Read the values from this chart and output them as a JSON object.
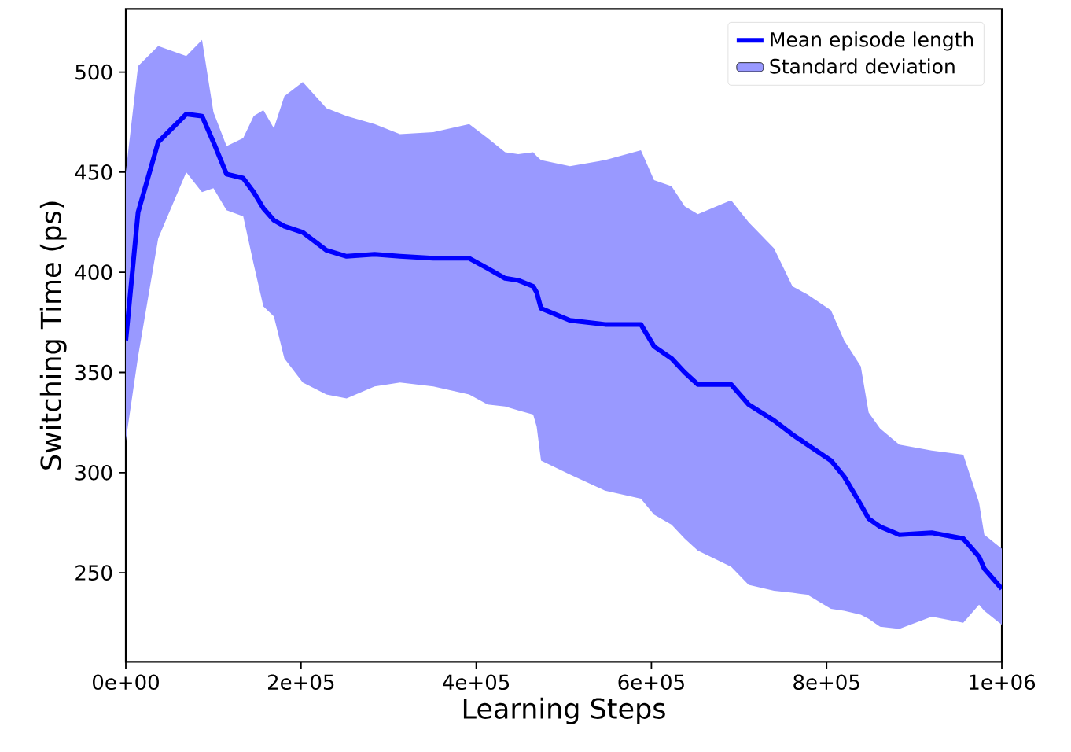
{
  "chart_data": {
    "type": "line",
    "xlabel": "Learning Steps",
    "ylabel": "Switching Time (ps)",
    "xlim": [
      0,
      1000000
    ],
    "ylim": [
      205.5,
      531.5
    ],
    "xticks": [
      {
        "value": 0,
        "label": "0e+00"
      },
      {
        "value": 200000,
        "label": "2e+05"
      },
      {
        "value": 400000,
        "label": "4e+05"
      },
      {
        "value": 600000,
        "label": "6e+05"
      },
      {
        "value": 800000,
        "label": "8e+05"
      },
      {
        "value": 1000000,
        "label": "1e+06"
      }
    ],
    "yticks": [
      250,
      300,
      350,
      400,
      450,
      500
    ],
    "legend": "top right",
    "series": [
      {
        "name": "Mean episode length",
        "color": "#0000ff",
        "x": [
          0,
          14000,
          37000,
          69000,
          87000,
          100000,
          115000,
          134000,
          146000,
          157000,
          169000,
          181000,
          202000,
          229000,
          252000,
          284000,
          313000,
          351000,
          392000,
          413000,
          433000,
          448000,
          465000,
          469000,
          474000,
          507000,
          547000,
          588000,
          603000,
          623000,
          638000,
          653000,
          691000,
          711000,
          740000,
          761000,
          778000,
          805000,
          820000,
          839000,
          848000,
          861000,
          883000,
          920000,
          956000,
          974000,
          980000,
          1000000
        ],
        "values": [
          366,
          430,
          465,
          479,
          478,
          465,
          449,
          447,
          440,
          432,
          426,
          423,
          420,
          411,
          408,
          409,
          408,
          407,
          407,
          402,
          397,
          396,
          393,
          390,
          382,
          376,
          374,
          374,
          363,
          357,
          350,
          344,
          344,
          334,
          326,
          319,
          314,
          306,
          298,
          284,
          277,
          273,
          269,
          270,
          267,
          258,
          252,
          242
        ],
        "upper": [
          450,
          503,
          513,
          508,
          516,
          480,
          463,
          467,
          478,
          481,
          472,
          488,
          495,
          482,
          478,
          474,
          469,
          470,
          474,
          467,
          460,
          459,
          460,
          458,
          456,
          453,
          456,
          461,
          446,
          443,
          433,
          429,
          436,
          425,
          412,
          393,
          389,
          381,
          366,
          353,
          330,
          322,
          314,
          311,
          309,
          285,
          269,
          262
        ],
        "lower": [
          316,
          358,
          417,
          450,
          440,
          442,
          431,
          428,
          404,
          383,
          378,
          357,
          345,
          339,
          337,
          343,
          345,
          343,
          339,
          334,
          333,
          331,
          329,
          323,
          306,
          299,
          291,
          287,
          279,
          274,
          267,
          261,
          253,
          244,
          241,
          240,
          239,
          232,
          231,
          229,
          227,
          223,
          222,
          228,
          225,
          234,
          231,
          224
        ]
      },
      {
        "name": "Standard deviation",
        "type": "area",
        "color": "#9999ff"
      }
    ]
  }
}
